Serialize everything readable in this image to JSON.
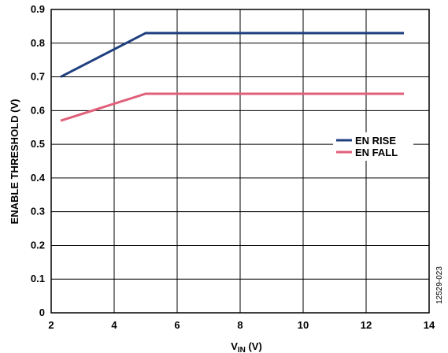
{
  "chart_data": {
    "type": "line",
    "xlabel_main": "V",
    "xlabel_sub": "IN",
    "xlabel_unit": " (V)",
    "ylabel": "ENABLE THRESHOLD (V)",
    "xlim": [
      2,
      14
    ],
    "ylim": [
      0,
      0.9
    ],
    "x_ticks": [
      2,
      4,
      6,
      8,
      10,
      12,
      14
    ],
    "y_ticks": [
      0,
      0.1,
      0.2,
      0.3,
      0.4,
      0.5,
      0.6,
      0.7,
      0.8,
      0.9
    ],
    "x_tick_labels": [
      "2",
      "4",
      "6",
      "8",
      "10",
      "12",
      "14"
    ],
    "y_tick_labels": [
      "0",
      "0.1",
      "0.2",
      "0.3",
      "0.4",
      "0.5",
      "0.6",
      "0.7",
      "0.8",
      "0.9"
    ],
    "grid": true,
    "legend_position": "right",
    "figure_id": "12529-023",
    "series": [
      {
        "name": "EN RISE",
        "color": "#1f3f7f",
        "x": [
          2.3,
          5.0,
          13.2
        ],
        "y": [
          0.7,
          0.83,
          0.83
        ]
      },
      {
        "name": "EN FALL",
        "color": "#e0607a",
        "x": [
          2.3,
          5.0,
          13.2
        ],
        "y": [
          0.57,
          0.65,
          0.65
        ]
      }
    ]
  }
}
